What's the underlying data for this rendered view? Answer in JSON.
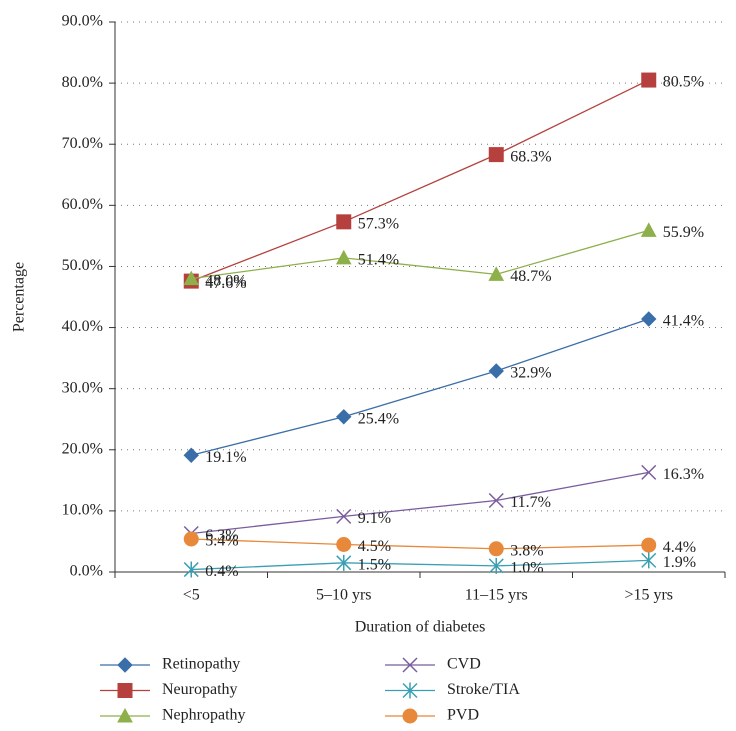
{
  "chart_data": {
    "type": "line",
    "xlabel": "Duration of diabetes",
    "ylabel": "Percentage",
    "categories": [
      "<5",
      "5–10 yrs",
      "11–15 yrs",
      ">15 yrs"
    ],
    "ylim": [
      0,
      90
    ],
    "yticks": [
      {
        "value": 0,
        "label": "0.0%"
      },
      {
        "value": 10,
        "label": "10.0%"
      },
      {
        "value": 20,
        "label": "20.0%"
      },
      {
        "value": 30,
        "label": "30.0%"
      },
      {
        "value": 40,
        "label": "40.0%"
      },
      {
        "value": 50,
        "label": "50.0%"
      },
      {
        "value": 60,
        "label": "60.0%"
      },
      {
        "value": 70,
        "label": "70.0%"
      },
      {
        "value": 80,
        "label": "80.0%"
      },
      {
        "value": 90,
        "label": "90.0%"
      }
    ],
    "grid": true,
    "series": [
      {
        "name": "Retinopathy",
        "color": "#3a6ea8",
        "marker": "diamond",
        "values": [
          19.1,
          25.4,
          32.9,
          41.4
        ],
        "value_labels": [
          "19.1%",
          "25.4%",
          "32.9%",
          "41.4%"
        ]
      },
      {
        "name": "Neuropathy",
        "color": "#b5403d",
        "marker": "square",
        "values": [
          47.6,
          57.3,
          68.3,
          80.5
        ],
        "value_labels": [
          "47.6%",
          "57.3%",
          "68.3%",
          "80.5%"
        ]
      },
      {
        "name": "Nephropathy",
        "color": "#8db04a",
        "marker": "triangle",
        "values": [
          48.0,
          51.4,
          48.7,
          55.9
        ],
        "value_labels": [
          "48.0%",
          "51.4%",
          "48.7%",
          "55.9%"
        ]
      },
      {
        "name": "CVD",
        "color": "#7a5c9e",
        "marker": "x",
        "values": [
          6.3,
          9.1,
          11.7,
          16.3
        ],
        "value_labels": [
          "6.3%",
          "9.1%",
          "11.7%",
          "16.3%"
        ]
      },
      {
        "name": "Stroke/TIA",
        "color": "#3a9fb2",
        "marker": "asterisk",
        "values": [
          0.4,
          1.5,
          1.0,
          1.9
        ],
        "value_labels": [
          "0.4%",
          "1.5%",
          "1.0%",
          "1.9%"
        ]
      },
      {
        "name": "PVD",
        "color": "#e8883a",
        "marker": "circle",
        "values": [
          5.4,
          4.5,
          3.8,
          4.4
        ],
        "value_labels": [
          "5.4%",
          "4.5%",
          "3.8%",
          "4.4%"
        ]
      }
    ]
  }
}
